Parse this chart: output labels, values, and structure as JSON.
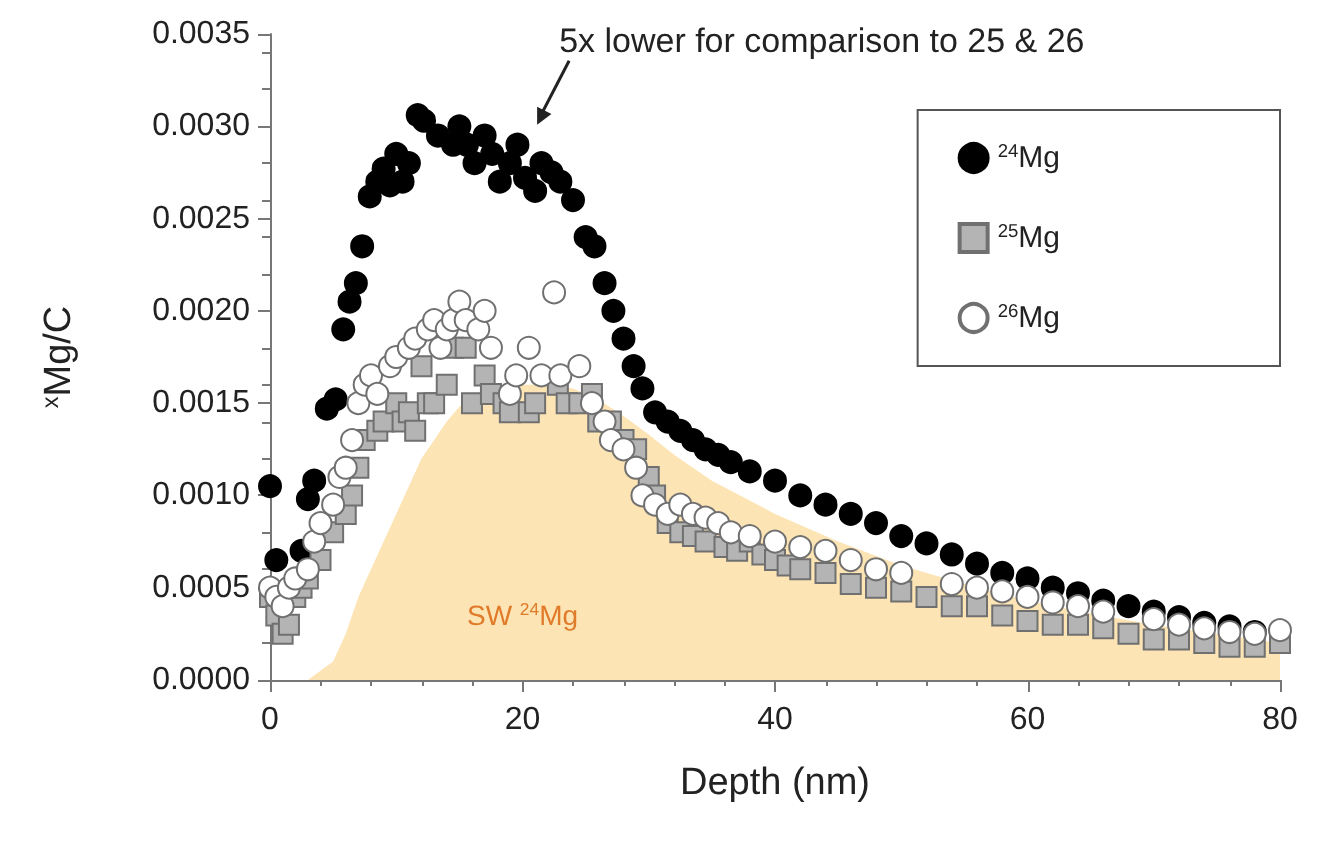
{
  "chart_data": {
    "type": "scatter",
    "xlabel": "Depth (nm)",
    "ylabel": "$^{x}$Mg/C",
    "annotations": [
      {
        "text": "5x lower for comparison to 25 & 26",
        "x": 21,
        "y": 0.0029
      }
    ],
    "xlim": [
      0,
      80
    ],
    "xticks": [
      0,
      20,
      40,
      60,
      80
    ],
    "ylim": [
      0,
      0.0035
    ],
    "yticks": [
      {
        "value": 0,
        "label": "0.0000"
      },
      {
        "value": 0.0005,
        "label": "0.0005"
      },
      {
        "value": 0.001,
        "label": "0.0010"
      },
      {
        "value": 0.0015,
        "label": "0.0015"
      },
      {
        "value": 0.002,
        "label": "0.0020"
      },
      {
        "value": 0.0025,
        "label": "0.0025"
      },
      {
        "value": 0.003,
        "label": "0.0030"
      },
      {
        "value": 0.0035,
        "label": "0.0035"
      }
    ],
    "grid": false,
    "legend": "top right",
    "series": [
      {
        "type": "area",
        "name": "SW $^{24}$Mg",
        "color": "#fde4b4",
        "x": [
          0,
          3,
          5,
          6,
          7,
          8,
          9,
          10,
          11,
          12,
          13,
          14,
          15,
          16,
          18,
          20,
          22,
          24,
          26,
          28,
          30,
          32,
          35,
          40,
          45,
          50,
          55,
          60,
          65,
          70,
          75,
          80
        ],
        "values": [
          0,
          0,
          0.0001,
          0.00025,
          0.00045,
          0.0006,
          0.00075,
          0.0009,
          0.00105,
          0.0012,
          0.0013,
          0.0014,
          0.00148,
          0.00153,
          0.00158,
          0.0016,
          0.0016,
          0.00158,
          0.00152,
          0.00143,
          0.00133,
          0.00122,
          0.00108,
          0.0009,
          0.00075,
          0.00062,
          0.00052,
          0.00043,
          0.00036,
          0.0003,
          0.00025,
          0.0002
        ]
      },
      {
        "name": "$^{24}$Mg",
        "color": "#000000",
        "marker": "circle",
        "x": [
          0,
          0.5,
          2.5,
          3,
          3.5,
          4.5,
          5.2,
          5.8,
          6.3,
          6.8,
          7.3,
          7.9,
          8.5,
          9,
          9.5,
          10,
          10.5,
          11,
          11.7,
          12.2,
          13.3,
          14.5,
          15,
          15.6,
          16.2,
          17,
          17.6,
          18.2,
          19,
          19.6,
          20.2,
          21,
          21.5,
          22.3,
          23,
          24,
          25,
          25.7,
          26.5,
          27.2,
          28,
          28.8,
          29.5,
          30.5,
          31.5,
          32.5,
          33.5,
          34.5,
          35.5,
          36.5,
          38,
          40,
          42,
          44,
          46,
          48,
          50,
          52,
          54,
          56,
          58,
          60,
          62,
          64,
          66,
          68,
          70,
          72,
          74,
          76,
          78
        ],
        "values": [
          0.00105,
          0.00065,
          0.0007,
          0.00098,
          0.00108,
          0.00147,
          0.00152,
          0.0019,
          0.00205,
          0.00215,
          0.00235,
          0.00262,
          0.0027,
          0.00277,
          0.00268,
          0.00285,
          0.0027,
          0.0028,
          0.00306,
          0.00303,
          0.00295,
          0.0029,
          0.003,
          0.0029,
          0.0028,
          0.00295,
          0.00285,
          0.0027,
          0.0028,
          0.0029,
          0.00272,
          0.00265,
          0.0028,
          0.00275,
          0.0027,
          0.0026,
          0.0024,
          0.00235,
          0.00215,
          0.002,
          0.00185,
          0.0017,
          0.00158,
          0.00145,
          0.0014,
          0.00135,
          0.0013,
          0.00125,
          0.00122,
          0.00118,
          0.00113,
          0.00108,
          0.001,
          0.00095,
          0.0009,
          0.00085,
          0.00078,
          0.00074,
          0.00068,
          0.00063,
          0.00058,
          0.00055,
          0.0005,
          0.00047,
          0.00043,
          0.0004,
          0.00037,
          0.00034,
          0.00031,
          0.00029,
          0.00026
        ]
      },
      {
        "name": "$^{25}$Mg",
        "color": "#b4b4b4",
        "marker": "square",
        "x": [
          0,
          0.5,
          1,
          1.5,
          2,
          2.5,
          3,
          4,
          5,
          6,
          6.5,
          7,
          7.5,
          8.5,
          9,
          10,
          10.5,
          11,
          11.5,
          12,
          12.5,
          13,
          14,
          14.5,
          15.5,
          16,
          17,
          17.5,
          18.5,
          19,
          20.5,
          21,
          22.8,
          23.5,
          24.5,
          25.5,
          26,
          27,
          28,
          29,
          30,
          30.5,
          31.5,
          32.5,
          33.5,
          34.5,
          36,
          37,
          38,
          39,
          40,
          41,
          42,
          44,
          46,
          48,
          50,
          52,
          54,
          56,
          58,
          60,
          62,
          64,
          66,
          68,
          70,
          72,
          74,
          76,
          78,
          80
        ],
        "values": [
          0.00045,
          0.00035,
          0.00025,
          0.0003,
          0.00045,
          0.0005,
          0.00055,
          0.00065,
          0.0008,
          0.0009,
          0.001,
          0.00115,
          0.0013,
          0.00135,
          0.0014,
          0.0015,
          0.0014,
          0.00145,
          0.00135,
          0.0017,
          0.0015,
          0.0015,
          0.0016,
          0.0018,
          0.0018,
          0.0015,
          0.00165,
          0.00155,
          0.0015,
          0.00145,
          0.00145,
          0.0015,
          0.0016,
          0.0015,
          0.0015,
          0.00155,
          0.0014,
          0.0014,
          0.0013,
          0.00125,
          0.0011,
          0.001,
          0.00085,
          0.0008,
          0.00078,
          0.00075,
          0.00072,
          0.0007,
          0.00075,
          0.00068,
          0.00065,
          0.00062,
          0.0006,
          0.00058,
          0.00052,
          0.0005,
          0.00048,
          0.00045,
          0.0004,
          0.0004,
          0.00035,
          0.00032,
          0.0003,
          0.0003,
          0.00028,
          0.00025,
          0.00022,
          0.00022,
          0.0002,
          0.00018,
          0.00018,
          0.0002
        ]
      },
      {
        "name": "$^{26}$Mg",
        "color": "#ffffff",
        "marker": "circle",
        "x": [
          0,
          0.5,
          1,
          1.5,
          2,
          3,
          3.5,
          4,
          5,
          5.5,
          6,
          6.5,
          7,
          7.5,
          8,
          8.5,
          9.5,
          10,
          11,
          11.5,
          12.5,
          13,
          13.5,
          14,
          14.5,
          15,
          15.5,
          16.5,
          17,
          17.5,
          19,
          19.5,
          20.5,
          21.5,
          22.5,
          23,
          24.5,
          25.5,
          26.5,
          27,
          28,
          29,
          29.5,
          30.5,
          31.5,
          32.5,
          33.5,
          34.5,
          35.5,
          36.5,
          38,
          40,
          42,
          44,
          46,
          48,
          50,
          54,
          56,
          58,
          60,
          62,
          64,
          66,
          70,
          72,
          74,
          76,
          78,
          80
        ],
        "values": [
          0.0005,
          0.00045,
          0.0004,
          0.0005,
          0.00055,
          0.0006,
          0.00075,
          0.00085,
          0.00095,
          0.0011,
          0.00115,
          0.0013,
          0.0015,
          0.0016,
          0.00165,
          0.00155,
          0.0017,
          0.00175,
          0.0018,
          0.00185,
          0.0019,
          0.00195,
          0.0018,
          0.0019,
          0.00195,
          0.00205,
          0.00195,
          0.0019,
          0.002,
          0.0018,
          0.00155,
          0.00165,
          0.0018,
          0.00165,
          0.0021,
          0.00165,
          0.0017,
          0.0015,
          0.0014,
          0.0013,
          0.00125,
          0.00115,
          0.001,
          0.00095,
          0.0009,
          0.00095,
          0.0009,
          0.00088,
          0.00085,
          0.0008,
          0.00078,
          0.00075,
          0.00072,
          0.0007,
          0.00065,
          0.0006,
          0.00058,
          0.00052,
          0.0005,
          0.00048,
          0.00045,
          0.00042,
          0.0004,
          0.00037,
          0.00033,
          0.0003,
          0.00028,
          0.00026,
          0.00025,
          0.00027
        ]
      }
    ]
  }
}
